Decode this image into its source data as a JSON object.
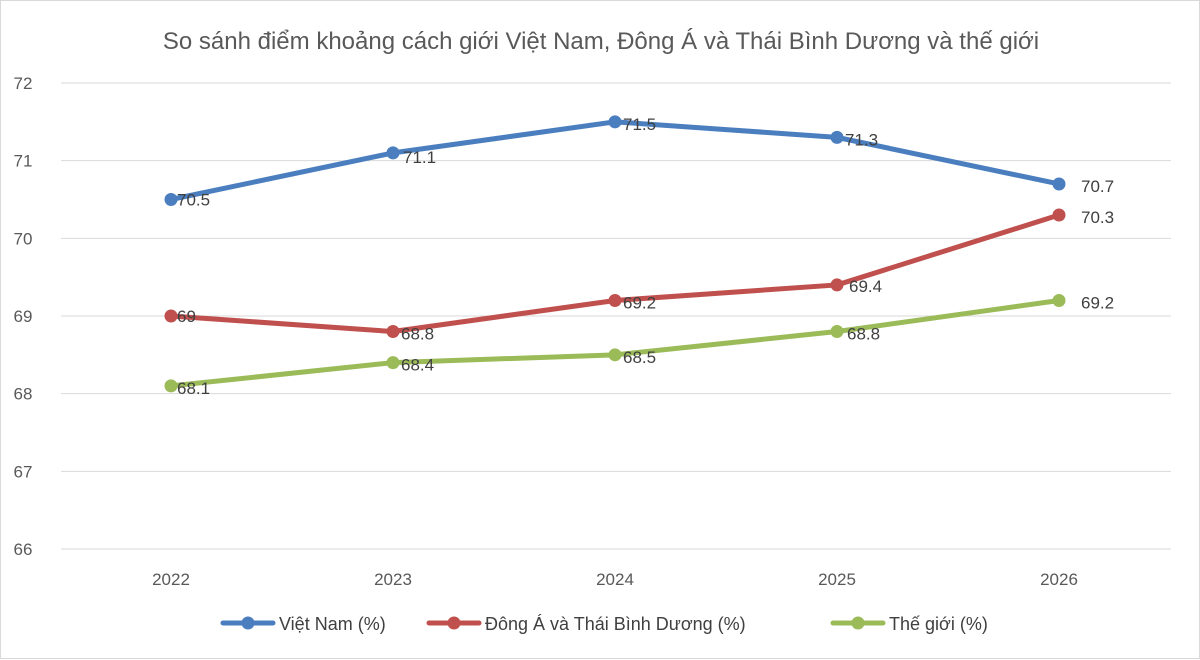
{
  "chart_data": {
    "type": "line",
    "title": "So sánh điểm khoảng cách giới Việt Nam, Đông Á và Thái Bình Dương và thế giới",
    "xlabel": "",
    "ylabel": "",
    "categories": [
      "2022",
      "2023",
      "2024",
      "2025",
      "2026"
    ],
    "ylim": [
      66,
      72
    ],
    "yticks": [
      "66",
      "67",
      "68",
      "69",
      "70",
      "71",
      "72"
    ],
    "grid": "horizontal",
    "legend": "bottom",
    "series": [
      {
        "name": "Việt Nam (%)",
        "color": "#4a7ebf",
        "values": [
          70.5,
          71.1,
          71.5,
          71.3,
          70.7
        ],
        "labels": [
          "70.5",
          "71.1",
          "71.5",
          "71.3",
          "70.7"
        ]
      },
      {
        "name": "Đông Á và Thái Bình Dương (%)",
        "color": "#c0504d",
        "values": [
          69,
          68.8,
          69.2,
          69.4,
          70.3
        ],
        "labels": [
          "69",
          "68.8",
          "69.2",
          "69.4",
          "70.3"
        ]
      },
      {
        "name": "Thế giới (%)",
        "color": "#9bbb59",
        "values": [
          68.1,
          68.4,
          68.5,
          68.8,
          69.2
        ],
        "labels": [
          "68.1",
          "68.4",
          "68.5",
          "68.8",
          "69.2"
        ]
      }
    ]
  }
}
